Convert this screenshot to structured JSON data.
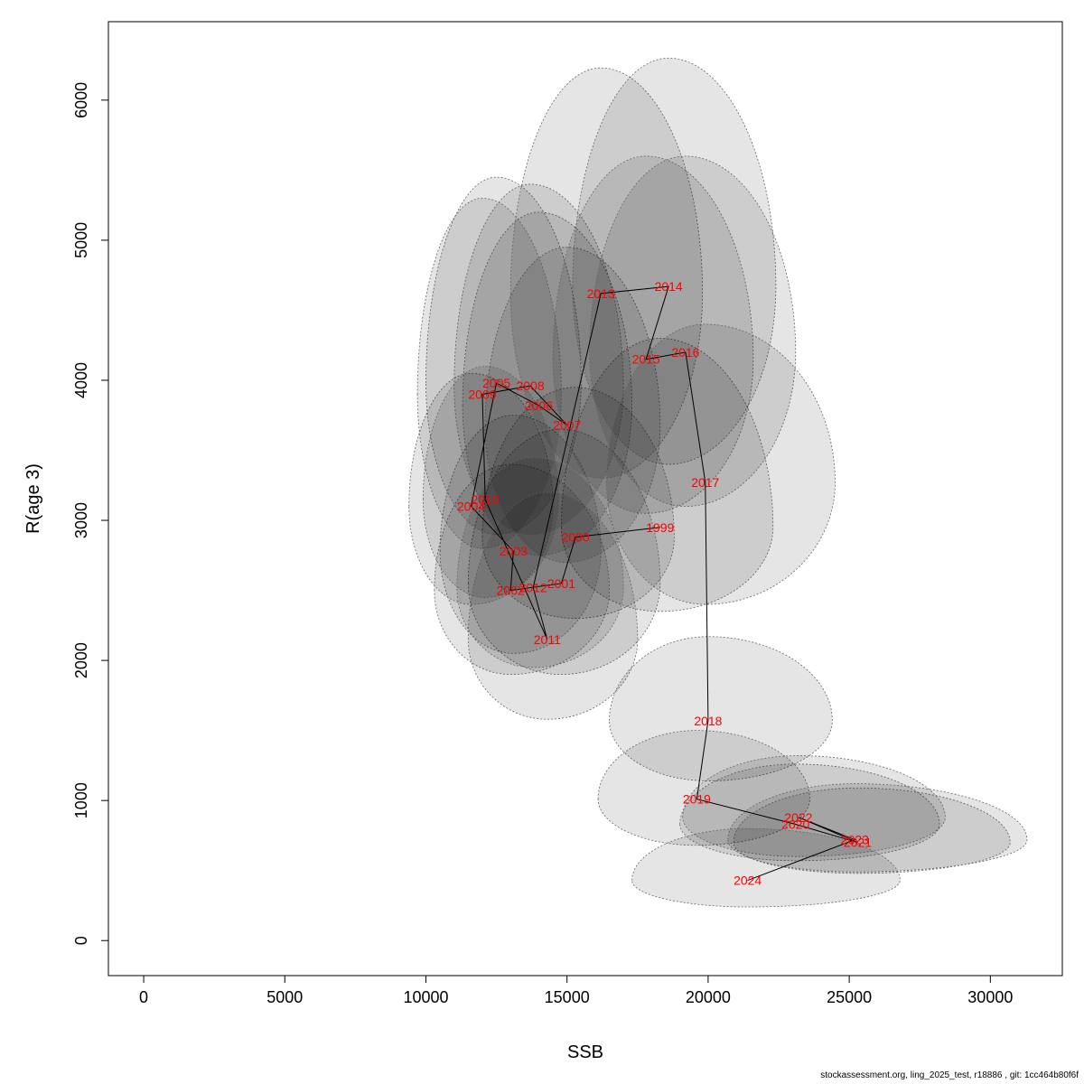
{
  "chart_data": {
    "type": "scatter",
    "title": "",
    "xlabel": "SSB",
    "ylabel": "R(age 3)",
    "xlim": [
      -1250,
      32550
    ],
    "ylim": [
      -250,
      6560
    ],
    "x_ticks": [
      0,
      5000,
      10000,
      15000,
      20000,
      25000,
      30000
    ],
    "y_ticks": [
      0,
      1000,
      2000,
      3000,
      4000,
      5000,
      6000
    ],
    "grid": false,
    "label_color": "#ff0000",
    "line_color": "#000000",
    "ellipse_fill": "#000000",
    "ellipse_stroke": "#666666",
    "points": [
      {
        "year": "1999",
        "ssb": 18300,
        "r": 2950,
        "ssb_lo": 14800,
        "ssb_hi": 22300,
        "r_lo": 2350,
        "r_hi": 4300
      },
      {
        "year": "2000",
        "ssb": 15300,
        "r": 2880,
        "ssb_lo": 12000,
        "ssb_hi": 18800,
        "r_lo": 2300,
        "r_hi": 3950
      },
      {
        "year": "2001",
        "ssb": 14800,
        "r": 2550,
        "ssb_lo": 11500,
        "ssb_hi": 18300,
        "r_lo": 1900,
        "r_hi": 3650
      },
      {
        "year": "2002",
        "ssb": 13000,
        "r": 2500,
        "ssb_lo": 10300,
        "ssb_hi": 16500,
        "r_lo": 1900,
        "r_hi": 3400
      },
      {
        "year": "2003",
        "ssb": 13100,
        "r": 2780,
        "ssb_lo": 10500,
        "ssb_hi": 16200,
        "r_lo": 2050,
        "r_hi": 3750
      },
      {
        "year": "2004",
        "ssb": 11600,
        "r": 3100,
        "ssb_lo": 9400,
        "ssb_hi": 14500,
        "r_lo": 2400,
        "r_hi": 4050
      },
      {
        "year": "2005",
        "ssb": 12500,
        "r": 3980,
        "ssb_lo": 10000,
        "ssb_hi": 15500,
        "r_lo": 2900,
        "r_hi": 5450
      },
      {
        "year": "2006",
        "ssb": 14000,
        "r": 3820,
        "ssb_lo": 11300,
        "ssb_hi": 17300,
        "r_lo": 2750,
        "r_hi": 5200
      },
      {
        "year": "2007",
        "ssb": 15000,
        "r": 3680,
        "ssb_lo": 12100,
        "ssb_hi": 18300,
        "r_lo": 2700,
        "r_hi": 4950
      },
      {
        "year": "2008",
        "ssb": 13700,
        "r": 3960,
        "ssb_lo": 11000,
        "ssb_hi": 17000,
        "r_lo": 2900,
        "r_hi": 5400
      },
      {
        "year": "2009",
        "ssb": 12000,
        "r": 3900,
        "ssb_lo": 9700,
        "ssb_hi": 14800,
        "r_lo": 2800,
        "r_hi": 5300
      },
      {
        "year": "2010",
        "ssb": 12100,
        "r": 3150,
        "ssb_lo": 9900,
        "ssb_hi": 14700,
        "r_lo": 2450,
        "r_hi": 4100
      },
      {
        "year": "2011",
        "ssb": 14300,
        "r": 2150,
        "ssb_lo": 11500,
        "ssb_hi": 17500,
        "r_lo": 1580,
        "r_hi": 3200
      },
      {
        "year": "2012",
        "ssb": 13800,
        "r": 2520,
        "ssb_lo": 11100,
        "ssb_hi": 17000,
        "r_lo": 1950,
        "r_hi": 3450
      },
      {
        "year": "2013",
        "ssb": 16200,
        "r": 4620,
        "ssb_lo": 13000,
        "ssb_hi": 19800,
        "r_lo": 3300,
        "r_hi": 6230
      },
      {
        "year": "2014",
        "ssb": 18600,
        "r": 4670,
        "ssb_lo": 15200,
        "ssb_hi": 22400,
        "r_lo": 3400,
        "r_hi": 6300
      },
      {
        "year": "2015",
        "ssb": 17800,
        "r": 4150,
        "ssb_lo": 14500,
        "ssb_hi": 21600,
        "r_lo": 3050,
        "r_hi": 5600
      },
      {
        "year": "2016",
        "ssb": 19200,
        "r": 4200,
        "ssb_lo": 15800,
        "ssb_hi": 23100,
        "r_lo": 3100,
        "r_hi": 5600
      },
      {
        "year": "2017",
        "ssb": 19900,
        "r": 3270,
        "ssb_lo": 16400,
        "ssb_hi": 24500,
        "r_lo": 2400,
        "r_hi": 4400
      },
      {
        "year": "2018",
        "ssb": 20000,
        "r": 1570,
        "ssb_lo": 16500,
        "ssb_hi": 24400,
        "r_lo": 1140,
        "r_hi": 2170
      },
      {
        "year": "2019",
        "ssb": 19600,
        "r": 1010,
        "ssb_lo": 16100,
        "ssb_hi": 23600,
        "r_lo": 680,
        "r_hi": 1500
      },
      {
        "year": "2020",
        "ssb": 23100,
        "r": 830,
        "ssb_lo": 19000,
        "ssb_hi": 28200,
        "r_lo": 570,
        "r_hi": 1260
      },
      {
        "year": "2021",
        "ssb": 25300,
        "r": 700,
        "ssb_lo": 20900,
        "ssb_hi": 30700,
        "r_lo": 480,
        "r_hi": 1090
      },
      {
        "year": "2022",
        "ssb": 23200,
        "r": 880,
        "ssb_lo": 19100,
        "ssb_hi": 28400,
        "r_lo": 600,
        "r_hi": 1320
      },
      {
        "year": "2023",
        "ssb": 25200,
        "r": 720,
        "ssb_lo": 20700,
        "ssb_hi": 31300,
        "r_lo": 490,
        "r_hi": 1120
      },
      {
        "year": "2024",
        "ssb": 21400,
        "r": 430,
        "ssb_lo": 17300,
        "ssb_hi": 26800,
        "r_lo": 240,
        "r_hi": 800
      }
    ]
  },
  "footer": {
    "text": "stockassessment.org, ling_2025_test, r18886 , git: 1cc464b80f6f"
  }
}
